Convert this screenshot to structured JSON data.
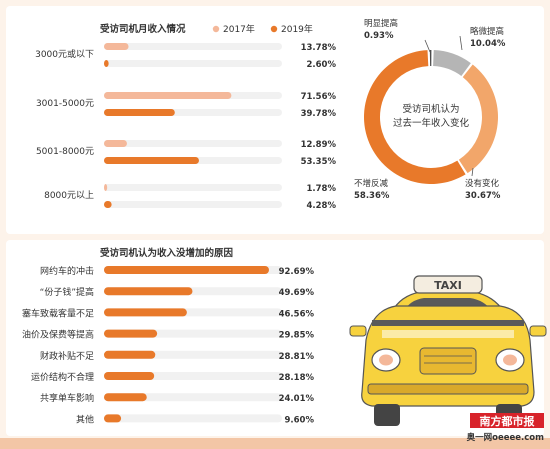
{
  "chart_data": [
    {
      "type": "bar",
      "title": "受访司机月收入情况",
      "categories": [
        "3000元或以下",
        "3001-5000元",
        "5001-8000元",
        "8000元以上"
      ],
      "series": [
        {
          "name": "2017年",
          "values": [
            13.78,
            71.56,
            12.89,
            1.78
          ],
          "labels": [
            "13.78%",
            "71.56%",
            "12.89%",
            "1.78%"
          ]
        },
        {
          "name": "2019年",
          "values": [
            2.6,
            39.78,
            53.35,
            4.28
          ],
          "labels": [
            "2.60%",
            "39.78%",
            "53.35%",
            "4.28%"
          ]
        }
      ],
      "xlim": [
        0,
        100
      ],
      "legend_position": "top-right",
      "colors": {
        "2017年": "#f4b89a",
        "2019年": "#e8792a"
      }
    },
    {
      "type": "pie",
      "title": "受访司机认为过去一年收入变化",
      "title_lines": [
        "受访司机认为",
        "过去一年收入变化"
      ],
      "slices": [
        {
          "label": "明显提高",
          "value": 0.93,
          "value_label": "0.93%",
          "color": "#4a4a4a"
        },
        {
          "label": "略微提高",
          "value": 10.04,
          "value_label": "10.04%",
          "color": "#b5b5b5"
        },
        {
          "label": "没有变化",
          "value": 30.67,
          "value_label": "30.67%",
          "color": "#f2a66a"
        },
        {
          "label": "不增反减",
          "value": 58.36,
          "value_label": "58.36%",
          "color": "#e8792a"
        }
      ],
      "donut": true
    },
    {
      "type": "bar",
      "title": "受访司机认为收入没增加的原因",
      "categories": [
        "网约车的冲击",
        "“份子钱”提高",
        "塞车致载客量不足",
        "油价及保费等提高",
        "财政补贴不足",
        "运价结构不合理",
        "共享单车影响",
        "其他"
      ],
      "values": [
        92.69,
        49.69,
        46.56,
        29.85,
        28.81,
        28.18,
        24.01,
        9.6
      ],
      "value_labels": [
        "92.69%",
        "49.69%",
        "46.56%",
        "29.85%",
        "28.81%",
        "28.18%",
        "24.01%",
        "9.60%"
      ],
      "xlim": [
        0,
        100
      ],
      "color": "#e8792a"
    }
  ],
  "illustration": {
    "taxi_sign": "TAXI",
    "body_color": "#f7d23e",
    "sign_color": "#f4ede0"
  },
  "watermark": {
    "brand": "南方都市报",
    "site": "奥一网oeeee.com"
  }
}
